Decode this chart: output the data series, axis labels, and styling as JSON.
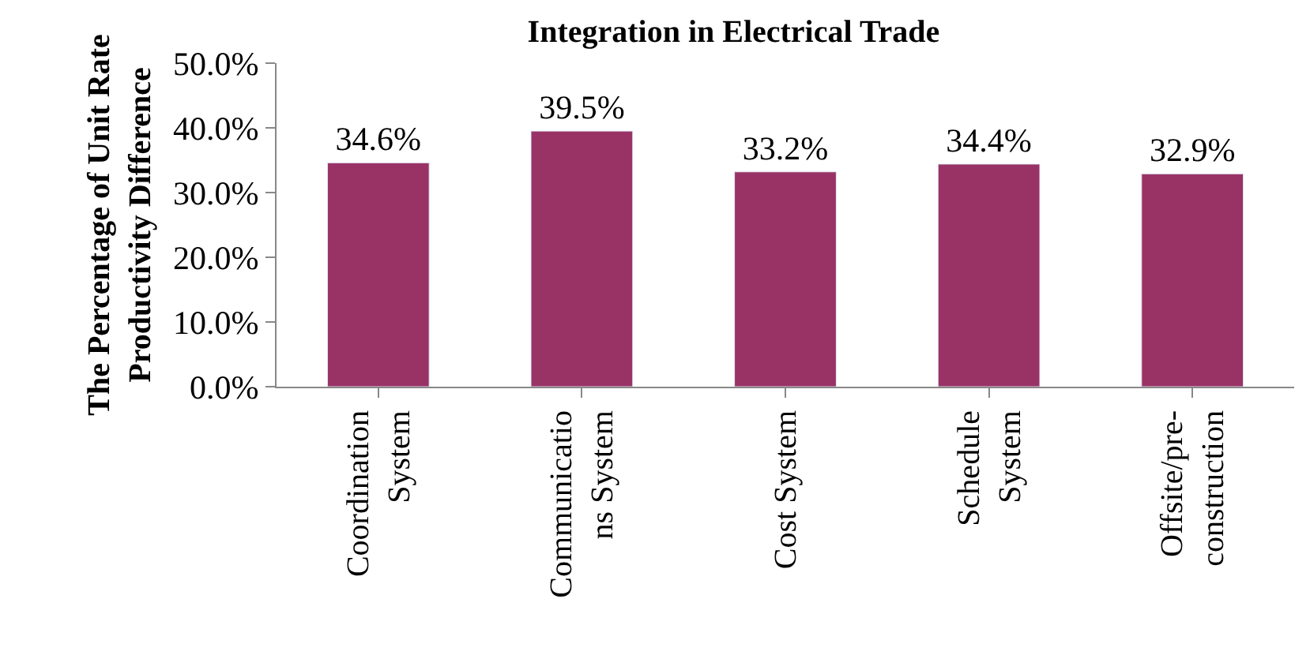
{
  "chart_data": {
    "type": "bar",
    "title": "Integration in Electrical Trade",
    "ylabel": "The Percentage of Unit Rate\nProductivity Difference",
    "categories": [
      "Coordination\nSystem",
      "Communicatio\nns System",
      "Cost System",
      "Schedule\nSystem",
      "Offsite/pre-\nconstruction"
    ],
    "values": [
      34.6,
      39.5,
      33.2,
      34.4,
      32.9
    ],
    "value_labels": [
      "34.6%",
      "39.5%",
      "33.2%",
      "34.4%",
      "32.9%"
    ],
    "color": "#993366",
    "ylim": [
      0,
      50
    ],
    "yticks": [
      {
        "value": 0,
        "label": "0.0%"
      },
      {
        "value": 10,
        "label": "10.0%"
      },
      {
        "value": 20,
        "label": "20.0%"
      },
      {
        "value": 30,
        "label": "30.0%"
      },
      {
        "value": 40,
        "label": "40.0%"
      },
      {
        "value": 50,
        "label": "50.0%"
      }
    ],
    "legend": false
  }
}
